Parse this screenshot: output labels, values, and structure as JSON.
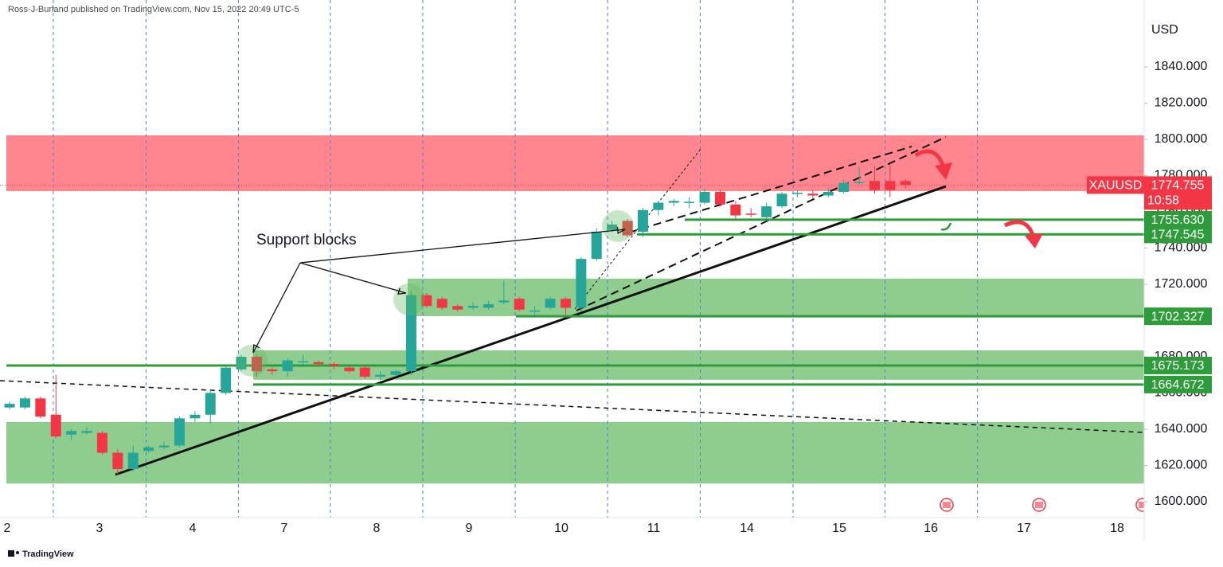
{
  "header": {
    "attribution": "Ross-J-Burland published on TradingView.com, Nov 15, 2022 20:49 UTC-5"
  },
  "footer": {
    "brand": "TradingView"
  },
  "chart_data": {
    "type": "candlestick",
    "symbol": "XAUUSD",
    "currency": "USD",
    "up_color": "#26a69a",
    "down_color": "#f23645",
    "open": [
      1652,
      1652,
      1657,
      1648,
      1637,
      1638,
      1638,
      1627,
      1618,
      1628,
      1630,
      1631,
      1646,
      1648,
      1660,
      1673,
      1680,
      1673,
      1672,
      1677,
      1677,
      1676,
      1674,
      1674,
      1669,
      1670,
      1672,
      1714,
      1712,
      1708,
      1707,
      1707,
      1710,
      1712,
      1705,
      1707,
      1712,
      1707,
      1734,
      1750,
      1755,
      1749,
      1761,
      1765,
      1765,
      1765,
      1771,
      1764,
      1759,
      1757,
      1763,
      1770,
      1770,
      1769,
      1771,
      1776,
      1777,
      1777,
      1777
    ],
    "high": [
      1655,
      1658,
      1658,
      1670,
      1640,
      1641,
      1639,
      1629,
      1631,
      1631,
      1633,
      1647,
      1650,
      1662,
      1675,
      1681,
      1681,
      1674,
      1679,
      1681,
      1678,
      1677,
      1675,
      1675,
      1672,
      1673,
      1716,
      1715,
      1713,
      1709,
      1710,
      1711,
      1722,
      1713,
      1708,
      1713,
      1713,
      1735,
      1751,
      1755,
      1756,
      1762,
      1766,
      1767,
      1768,
      1773,
      1772,
      1766,
      1762,
      1765,
      1771,
      1772,
      1772,
      1773,
      1778,
      1785,
      1785,
      1786,
      1778
    ],
    "low": [
      1651,
      1651,
      1646,
      1635,
      1634,
      1637,
      1626,
      1615,
      1617,
      1627,
      1629,
      1630,
      1644,
      1643,
      1659,
      1672,
      1669,
      1670,
      1669,
      1676,
      1675,
      1673,
      1671,
      1668,
      1667,
      1669,
      1670,
      1707,
      1706,
      1705,
      1706,
      1706,
      1709,
      1705,
      1703,
      1706,
      1703,
      1705,
      1733,
      1749,
      1746,
      1746,
      1758,
      1763,
      1762,
      1764,
      1763,
      1756,
      1757,
      1756,
      1762,
      1768,
      1767,
      1768,
      1770,
      1775,
      1770,
      1768,
      1773
    ],
    "close": [
      1654,
      1657,
      1647,
      1636,
      1639,
      1639,
      1627,
      1618,
      1627,
      1630,
      1631,
      1646,
      1648,
      1660,
      1674,
      1680,
      1672,
      1672,
      1678,
      1677.5,
      1676,
      1675,
      1672,
      1669,
      1670,
      1672,
      1714,
      1708,
      1707,
      1706,
      1708,
      1709,
      1711,
      1706,
      1705.5,
      1712,
      1707,
      1734,
      1749,
      1753,
      1747,
      1761,
      1765,
      1766,
      1765.5,
      1771,
      1764,
      1758,
      1758.5,
      1763,
      1770,
      1770.5,
      1769,
      1771,
      1776,
      1776.5,
      1772,
      1772,
      1774.755
    ],
    "xlim": [
      -0.62,
      73.45
    ],
    "xticks": [
      {
        "value": -0.16,
        "label": "2"
      },
      {
        "value": 5.82,
        "label": "3"
      },
      {
        "value": 11.85,
        "label": "4"
      },
      {
        "value": 17.78,
        "label": "7"
      },
      {
        "value": 23.76,
        "label": "8"
      },
      {
        "value": 29.74,
        "label": "9"
      },
      {
        "value": 35.72,
        "label": "10"
      },
      {
        "value": 41.7,
        "label": "11"
      },
      {
        "value": 47.73,
        "label": "14"
      },
      {
        "value": 53.71,
        "label": "15"
      },
      {
        "value": 59.64,
        "label": "16"
      },
      {
        "value": 65.67,
        "label": "17"
      },
      {
        "value": 71.7,
        "label": "18"
      }
    ],
    "ylim": [
      1591.2,
      1876.9
    ],
    "yticks": [
      {
        "value": 1600,
        "label": "1600.000"
      },
      {
        "value": 1620,
        "label": "1620.000"
      },
      {
        "value": 1640,
        "label": "1640.000"
      },
      {
        "value": 1660,
        "label": "1660.000"
      },
      {
        "value": 1680,
        "label": "1680.000"
      },
      {
        "value": 1700,
        "label": "1700.000"
      },
      {
        "value": 1720,
        "label": "1720.000"
      },
      {
        "value": 1740,
        "label": "1740.000"
      },
      {
        "value": 1760,
        "label": "1760.000"
      },
      {
        "value": 1780,
        "label": "1780.000"
      },
      {
        "value": 1800,
        "label": "1800.000"
      },
      {
        "value": 1820,
        "label": "1820.000"
      },
      {
        "value": 1840,
        "label": "1840.000"
      }
    ],
    "last_price": {
      "value": 1774.755,
      "label": "1774.755",
      "countdown": "10:58"
    },
    "levels": [
      {
        "value": 1755.63,
        "label": "1755.630"
      },
      {
        "value": 1747.545,
        "label": "1747.545"
      },
      {
        "value": 1702.327,
        "label": "1702.327"
      },
      {
        "value": 1675.173,
        "label": "1675.173"
      },
      {
        "value": 1664.672,
        "label": "1664.672"
      }
    ],
    "zones": [
      {
        "from": 1771.4,
        "to": 1802.2,
        "color": "#ff8088"
      },
      {
        "from": 1702.4,
        "to": 1723.1,
        "color": "#8fcd8f"
      },
      {
        "from": 1667.3,
        "to": 1683.5,
        "color": "#8fcd8f"
      },
      {
        "from": 1610,
        "to": 1644,
        "color": "#8fcd8f"
      }
    ],
    "annotation": "Support blocks"
  }
}
